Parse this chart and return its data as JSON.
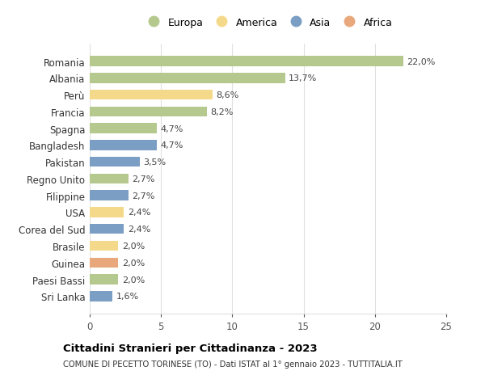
{
  "countries": [
    "Romania",
    "Albania",
    "Perù",
    "Francia",
    "Spagna",
    "Bangladesh",
    "Pakistan",
    "Regno Unito",
    "Filippine",
    "USA",
    "Corea del Sud",
    "Brasile",
    "Guinea",
    "Paesi Bassi",
    "Sri Lanka"
  ],
  "values": [
    22.0,
    13.7,
    8.6,
    8.2,
    4.7,
    4.7,
    3.5,
    2.7,
    2.7,
    2.4,
    2.4,
    2.0,
    2.0,
    2.0,
    1.6
  ],
  "labels": [
    "22,0%",
    "13,7%",
    "8,6%",
    "8,2%",
    "4,7%",
    "4,7%",
    "3,5%",
    "2,7%",
    "2,7%",
    "2,4%",
    "2,4%",
    "2,0%",
    "2,0%",
    "2,0%",
    "1,6%"
  ],
  "colors": [
    "#b5c98e",
    "#b5c98e",
    "#f5d98b",
    "#b5c98e",
    "#b5c98e",
    "#7b9ec4",
    "#7b9ec4",
    "#b5c98e",
    "#7b9ec4",
    "#f5d98b",
    "#7b9ec4",
    "#f5d98b",
    "#e8a87c",
    "#b5c98e",
    "#7b9ec4"
  ],
  "continent_labels": [
    "Europa",
    "America",
    "Asia",
    "Africa"
  ],
  "continent_colors": [
    "#b5c98e",
    "#f5d98b",
    "#7b9ec4",
    "#e8a87c"
  ],
  "title": "Cittadini Stranieri per Cittadinanza - 2023",
  "subtitle": "COMUNE DI PECETTO TORINESE (TO) - Dati ISTAT al 1° gennaio 2023 - TUTTITALIA.IT",
  "xlim": [
    0,
    25
  ],
  "xticks": [
    0,
    5,
    10,
    15,
    20,
    25
  ],
  "bg_color": "#ffffff",
  "grid_color": "#e0e0e0"
}
